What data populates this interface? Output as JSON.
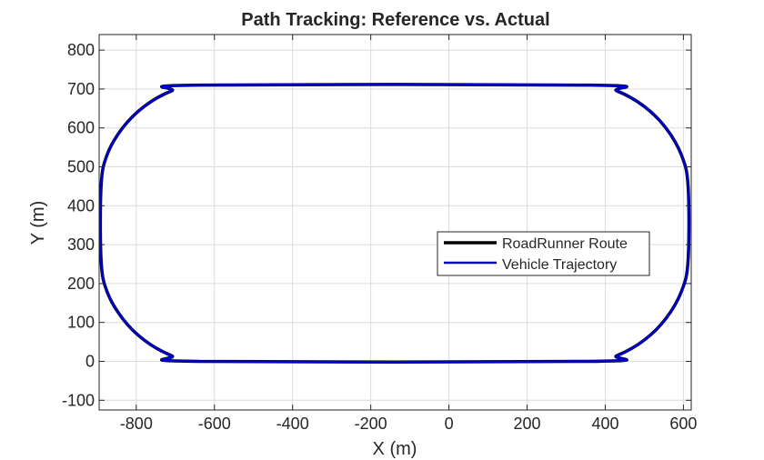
{
  "chart_data": {
    "type": "line",
    "title": "Path Tracking: Reference vs. Actual",
    "xlabel": "X (m)",
    "ylabel": "Y (m)",
    "xlim": [
      -895,
      620
    ],
    "ylim": [
      -125,
      840
    ],
    "xticks": [
      -800,
      -600,
      -400,
      -200,
      0,
      200,
      400,
      600
    ],
    "yticks": [
      -100,
      0,
      100,
      200,
      300,
      400,
      500,
      600,
      700,
      800
    ],
    "xtick_labels": [
      "-800",
      "-600",
      "-400",
      "-200",
      "0",
      "200",
      "400",
      "600"
    ],
    "ytick_labels": [
      "-100",
      "0",
      "100",
      "200",
      "300",
      "400",
      "500",
      "600",
      "700",
      "800"
    ],
    "grid": true,
    "legend_position": "right-center",
    "series": [
      {
        "name": "RoadRunner Route",
        "color": "#000000",
        "x": [
          -640,
          360,
          430,
          500,
          555,
          595,
          612,
          612,
          595,
          555,
          500,
          430,
          360,
          -640,
          -710,
          -780,
          -835,
          -875,
          -890,
          -890,
          -875,
          -835,
          -780,
          -710,
          -640
        ],
        "y": [
          0,
          0,
          15,
          55,
          110,
          180,
          260,
          450,
          530,
          600,
          655,
          695,
          710,
          710,
          695,
          655,
          600,
          530,
          450,
          260,
          180,
          110,
          55,
          15,
          0
        ]
      },
      {
        "name": "Vehicle Trajectory",
        "color": "#0000cc",
        "x": [
          -640,
          360,
          430,
          500,
          555,
          595,
          612,
          612,
          595,
          555,
          500,
          430,
          360,
          -640,
          -710,
          -780,
          -835,
          -875,
          -890,
          -890,
          -875,
          -835,
          -780,
          -710,
          -640
        ],
        "y": [
          0,
          0,
          15,
          55,
          110,
          180,
          260,
          450,
          530,
          600,
          655,
          695,
          710,
          710,
          695,
          655,
          600,
          530,
          450,
          260,
          180,
          110,
          55,
          15,
          0
        ]
      }
    ]
  }
}
